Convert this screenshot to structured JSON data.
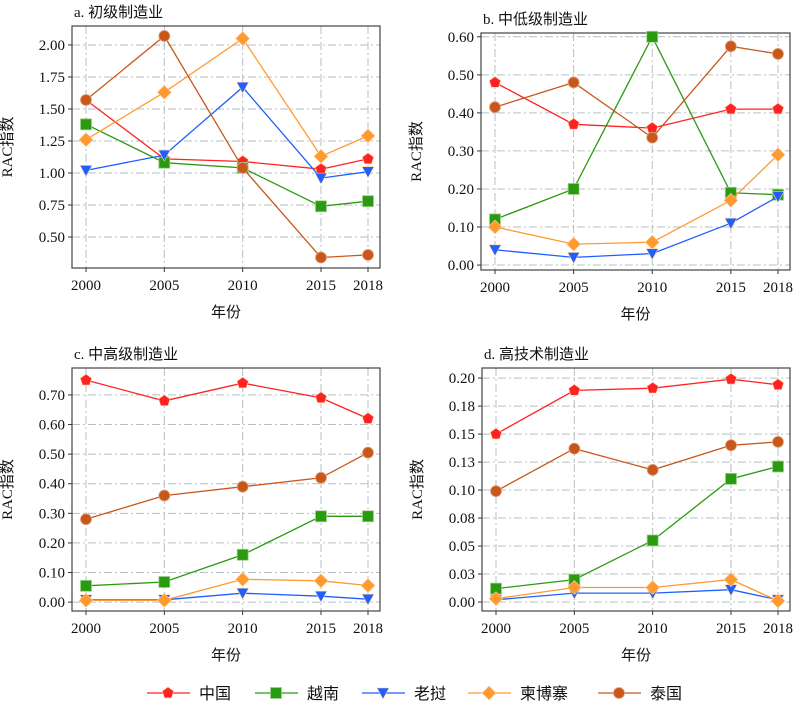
{
  "chart_data": {
    "type": "line",
    "series_names": [
      "中国",
      "越南",
      "老挝",
      "柬博寨",
      "泰国"
    ],
    "colors": [
      "#ff2222",
      "#2a9a10",
      "#1f5fff",
      "#ff9a30",
      "#c8581a"
    ],
    "markers": [
      "pentagon",
      "square",
      "triangle-down",
      "diamond",
      "circle"
    ],
    "x": [
      2000,
      2005,
      2010,
      2015,
      2018
    ],
    "xticklabels": [
      "2000",
      "2005",
      "2010",
      "2015",
      "2018"
    ],
    "panels": [
      {
        "title": "a. 初级制造业",
        "xlabel": "年份",
        "ylabel": "RAC指数",
        "ylim": [
          0.258,
          2.148
        ],
        "yticks": [
          0.5,
          0.75,
          1.0,
          1.25,
          1.5,
          1.75,
          2.0
        ],
        "yticklabels": [
          "0.50",
          "0.75",
          "1.00",
          "1.25",
          "1.50",
          "1.75",
          "2.00"
        ],
        "series": [
          {
            "name": "中国",
            "values": [
              1.57,
              1.11,
              1.09,
              1.03,
              1.11
            ]
          },
          {
            "name": "越南",
            "values": [
              1.38,
              1.08,
              1.04,
              0.74,
              0.78
            ]
          },
          {
            "name": "老挝",
            "values": [
              1.02,
              1.14,
              1.67,
              0.96,
              1.01
            ]
          },
          {
            "name": "柬博寨",
            "values": [
              1.26,
              1.63,
              2.05,
              1.13,
              1.29
            ]
          },
          {
            "name": "泰国",
            "values": [
              1.57,
              2.07,
              1.04,
              0.34,
              0.36
            ]
          }
        ]
      },
      {
        "title": "b. 中低级制造业",
        "xlabel": "年份",
        "ylabel": "RAC指数",
        "ylim": [
          -0.013,
          0.61
        ],
        "yticks": [
          0,
          0.1,
          0.2,
          0.3,
          0.4,
          0.5,
          0.6
        ],
        "yticklabels": [
          "0.00",
          "0.10",
          "0.20",
          "0.30",
          "0.40",
          "0.50",
          "0.60"
        ],
        "series": [
          {
            "name": "中国",
            "values": [
              0.48,
              0.37,
              0.36,
              0.41,
              0.41
            ]
          },
          {
            "name": "越南",
            "values": [
              0.12,
              0.2,
              0.6,
              0.19,
              0.185
            ]
          },
          {
            "name": "老挝",
            "values": [
              0.04,
              0.02,
              0.03,
              0.11,
              0.18
            ]
          },
          {
            "name": "柬博寨",
            "values": [
              0.1,
              0.055,
              0.06,
              0.17,
              0.29
            ]
          },
          {
            "name": "泰国",
            "values": [
              0.415,
              0.48,
              0.335,
              0.575,
              0.555
            ]
          }
        ]
      },
      {
        "title": "c. 中高级制造业",
        "xlabel": "年份",
        "ylabel": "RAC指数",
        "ylim": [
          -0.03,
          0.791
        ],
        "yticks": [
          0,
          0.1,
          0.2,
          0.3,
          0.4,
          0.5,
          0.6,
          0.7
        ],
        "yticklabels": [
          "0.00",
          "0.10",
          "0.20",
          "0.30",
          "0.40",
          "0.50",
          "0.60",
          "0.70"
        ],
        "series": [
          {
            "name": "中国",
            "values": [
              0.75,
              0.68,
              0.74,
              0.69,
              0.62
            ]
          },
          {
            "name": "越南",
            "values": [
              0.055,
              0.068,
              0.16,
              0.29,
              0.29
            ]
          },
          {
            "name": "老挝",
            "values": [
              0.008,
              0.008,
              0.03,
              0.02,
              0.01
            ]
          },
          {
            "name": "柬博寨",
            "values": [
              0.006,
              0.006,
              0.077,
              0.072,
              0.056
            ]
          },
          {
            "name": "泰国",
            "values": [
              0.28,
              0.36,
              0.39,
              0.42,
              0.505
            ]
          }
        ]
      },
      {
        "title": "d. 高技术制造业",
        "xlabel": "年份",
        "ylabel": "RAC指数",
        "ylim": [
          -0.008,
          0.209
        ],
        "yticks": [
          0,
          0.025,
          0.05,
          0.075,
          0.1,
          0.125,
          0.15,
          0.175,
          0.2
        ],
        "yticklabels": [
          "0.00",
          "0.03",
          "0.05",
          "0.08",
          "0.10",
          "0.13",
          "0.15",
          "0.18",
          "0.20"
        ],
        "series": [
          {
            "name": "中国",
            "values": [
              0.15,
              0.189,
              0.191,
              0.199,
              0.194
            ]
          },
          {
            "name": "越南",
            "values": [
              0.012,
              0.02,
              0.055,
              0.11,
              0.121
            ]
          },
          {
            "name": "老挝",
            "values": [
              0.002,
              0.008,
              0.008,
              0.011,
              0.002
            ]
          },
          {
            "name": "柬博寨",
            "values": [
              0.003,
              0.013,
              0.013,
              0.02,
              0.001
            ]
          },
          {
            "name": "泰国",
            "values": [
              0.099,
              0.137,
              0.118,
              0.14,
              0.143
            ]
          }
        ]
      }
    ],
    "legend": {
      "position": "bottom",
      "entries": [
        "中国",
        "越南",
        "老挝",
        "柬博寨",
        "泰国"
      ]
    }
  }
}
